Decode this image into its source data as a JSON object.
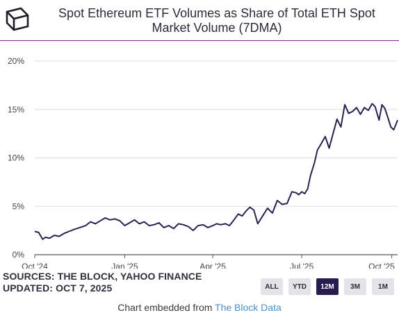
{
  "header": {
    "title_line1": "Spot Ethereum ETF Volumes as Share of Total ETH Spot",
    "title_line2": "Market Volume (7DMA)"
  },
  "footer": {
    "sources": "SOURCES: THE BLOCK, YAHOO FINANCE",
    "updated": "UPDATED: OCT 7, 2025",
    "embed_prefix": "Chart embedded from ",
    "embed_link": "The Block Data"
  },
  "range_buttons": [
    {
      "label": "ALL",
      "active": false
    },
    {
      "label": "YTD",
      "active": false
    },
    {
      "label": "12M",
      "active": true
    },
    {
      "label": "3M",
      "active": false
    },
    {
      "label": "1M",
      "active": false
    }
  ],
  "colors": {
    "line": "#27224f",
    "grid": "#dddddd",
    "divider": "#7a2f86",
    "active_button": "#261c4e"
  },
  "chart_data": {
    "type": "line",
    "title": "Spot Ethereum ETF Volumes as Share of Total ETH Spot Market Volume (7DMA)",
    "xlabel": "",
    "ylabel": "",
    "ylim": [
      0,
      20
    ],
    "yticks": [
      0,
      5,
      10,
      15,
      20
    ],
    "ytick_labels": [
      "0%",
      "5%",
      "10%",
      "15%",
      "20%"
    ],
    "xlim": [
      "2024-10-01",
      "2025-10-07"
    ],
    "xticks": [
      "2024-10-01",
      "2025-01-01",
      "2025-04-01",
      "2025-07-01",
      "2025-10-01"
    ],
    "xtick_labels": [
      "Oct '24",
      "Jan '25",
      "Apr '25",
      "Jul '25",
      "Oct '25"
    ],
    "grid": true,
    "series": [
      {
        "x": [
          "2024-10-01",
          "2024-10-05",
          "2024-10-09",
          "2024-10-12",
          "2024-10-16",
          "2024-10-21",
          "2024-10-26",
          "2024-10-31",
          "2024-11-05",
          "2024-11-10",
          "2024-11-16",
          "2024-11-22",
          "2024-11-27",
          "2024-12-02",
          "2024-12-07",
          "2024-12-12",
          "2024-12-17",
          "2024-12-22",
          "2024-12-27",
          "2025-01-01",
          "2025-01-06",
          "2025-01-11",
          "2025-01-16",
          "2025-01-21",
          "2025-01-26",
          "2025-01-31",
          "2025-02-05",
          "2025-02-10",
          "2025-02-15",
          "2025-02-20",
          "2025-02-25",
          "2025-03-02",
          "2025-03-07",
          "2025-03-12",
          "2025-03-17",
          "2025-03-22",
          "2025-03-27",
          "2025-04-01",
          "2025-04-05",
          "2025-04-09",
          "2025-04-14",
          "2025-04-18",
          "2025-04-22",
          "2025-04-27",
          "2025-05-01",
          "2025-05-05",
          "2025-05-09",
          "2025-05-13",
          "2025-05-17",
          "2025-05-22",
          "2025-05-27",
          "2025-06-01",
          "2025-06-06",
          "2025-06-11",
          "2025-06-16",
          "2025-06-21",
          "2025-06-25",
          "2025-06-28",
          "2025-07-01",
          "2025-07-04",
          "2025-07-07",
          "2025-07-10",
          "2025-07-14",
          "2025-07-17",
          "2025-07-21",
          "2025-07-25",
          "2025-07-29",
          "2025-08-02",
          "2025-08-06",
          "2025-08-10",
          "2025-08-14",
          "2025-08-18",
          "2025-08-22",
          "2025-08-26",
          "2025-08-30",
          "2025-09-03",
          "2025-09-07",
          "2025-09-11",
          "2025-09-14",
          "2025-09-18",
          "2025-09-21",
          "2025-09-24",
          "2025-09-27",
          "2025-09-30",
          "2025-10-03",
          "2025-10-05",
          "2025-10-07"
        ],
        "values": [
          2.4,
          2.3,
          1.6,
          1.8,
          1.7,
          2.0,
          1.9,
          2.2,
          2.4,
          2.6,
          2.8,
          3.0,
          3.4,
          3.2,
          3.5,
          3.8,
          3.6,
          3.7,
          3.5,
          3.0,
          3.3,
          3.6,
          3.2,
          3.4,
          3.0,
          3.1,
          3.3,
          2.8,
          3.0,
          2.7,
          3.2,
          3.1,
          2.9,
          2.5,
          3.0,
          3.1,
          2.8,
          3.0,
          3.2,
          3.1,
          3.2,
          3.0,
          3.5,
          4.2,
          4.0,
          4.5,
          4.9,
          4.6,
          3.2,
          4.0,
          4.8,
          4.3,
          5.6,
          5.2,
          5.3,
          6.5,
          6.4,
          6.2,
          6.5,
          6.3,
          6.8,
          8.2,
          9.5,
          10.8,
          11.5,
          12.2,
          11.0,
          12.5,
          14.0,
          13.2,
          15.5,
          14.6,
          14.8,
          15.2,
          14.5,
          15.2,
          14.9,
          15.6,
          15.3,
          13.9,
          15.5,
          15.1,
          14.2,
          13.2,
          12.9,
          13.4,
          13.9
        ]
      }
    ]
  }
}
